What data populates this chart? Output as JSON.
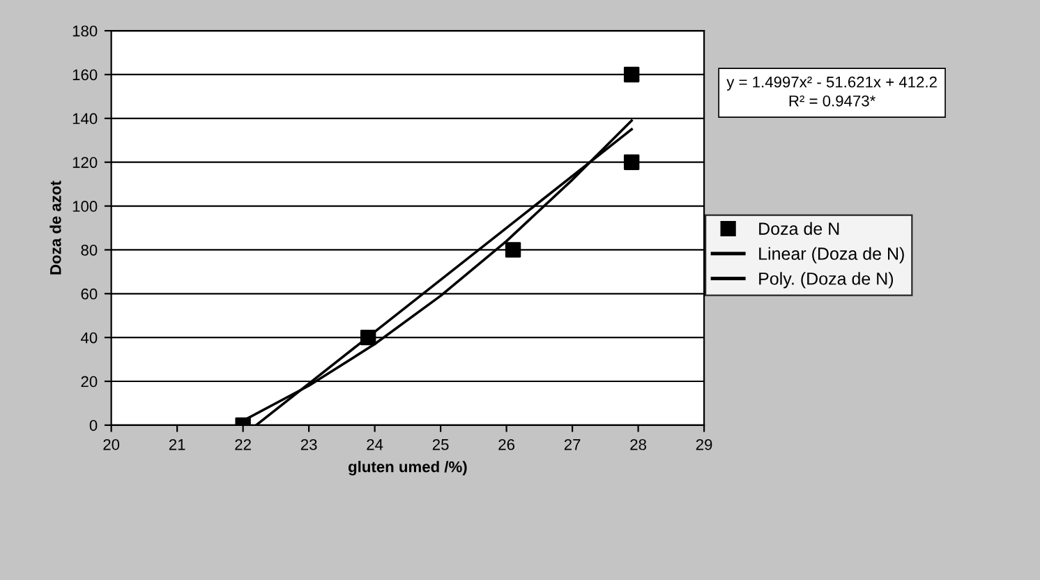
{
  "chart_data": {
    "type": "scatter",
    "xlabel": "gluten umed /%)",
    "ylabel": "Doza de azot",
    "xlim": [
      20,
      29
    ],
    "xticks": [
      20,
      21,
      22,
      23,
      24,
      25,
      26,
      27,
      28,
      29
    ],
    "ylim": [
      0,
      180
    ],
    "yticks": [
      0,
      20,
      40,
      60,
      80,
      100,
      120,
      140,
      160,
      180
    ],
    "grid": "y",
    "legend": "right",
    "annotations": [
      "y = 1.4997x² - 51.621x + 412.2",
      "R² = 0.9473*"
    ],
    "series": [
      {
        "name": "Doza de N",
        "marker": "square",
        "color": "#000000",
        "x": [
          22,
          23.9,
          26.1,
          27.9,
          27.9
        ],
        "values": [
          0,
          40,
          80,
          120,
          160
        ]
      },
      {
        "name": "Linear (Doza de N)",
        "type": "line",
        "marker": "none",
        "color": "#000000",
        "x": [
          22.2,
          27.9
        ],
        "values": [
          0,
          135
        ]
      },
      {
        "name": "Poly. (Doza de N)",
        "type": "line",
        "marker": "none",
        "color": "#000000",
        "x": [
          22,
          23,
          24,
          25,
          26,
          27,
          27.9
        ],
        "values": [
          2,
          18,
          37,
          59,
          84,
          112,
          139
        ]
      }
    ]
  }
}
